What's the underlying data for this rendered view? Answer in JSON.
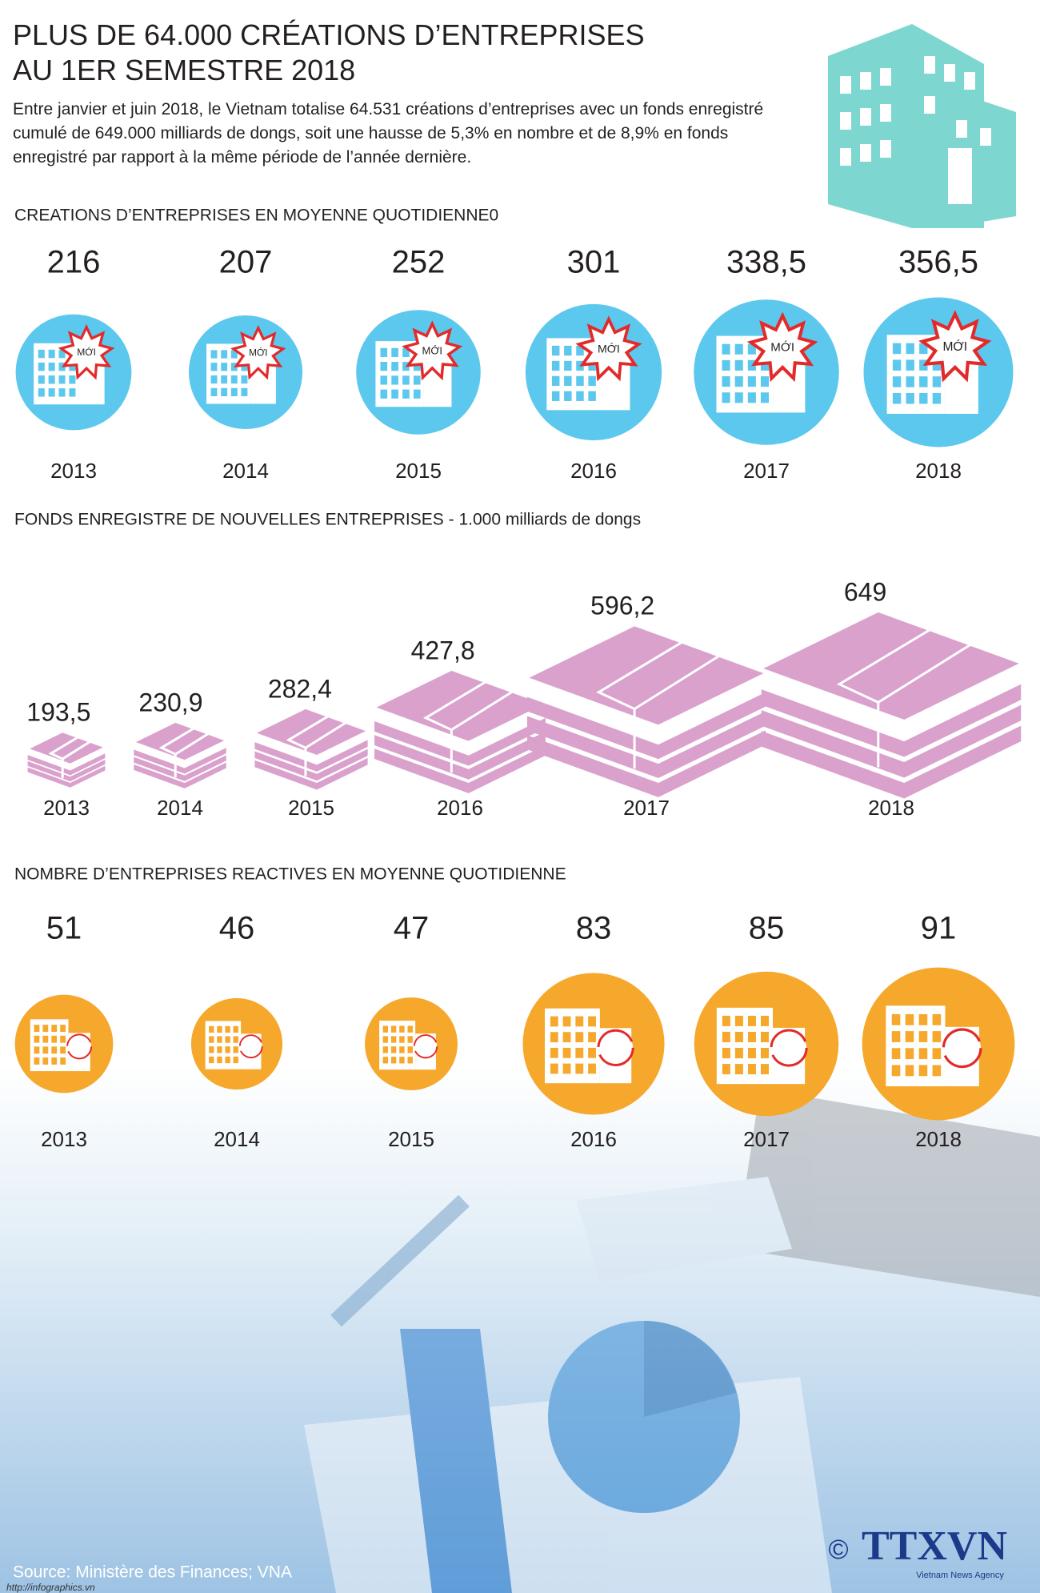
{
  "header": {
    "title": [
      "PLUS DE 64.000 CRÉATIONS D’ENTREPRISES",
      "AU 1ER SEMESTRE 2018"
    ],
    "intro": "Entre janvier et juin 2018, le Vietnam totalise 64.531 créations d’entreprises avec un fonds enregistré cumulé de 649.000 milliards de dongs, soit une hausse de 5,3% en nombre et de 8,9% en fonds enregistré par rapport à la même période de l’année dernière."
  },
  "chart_data": [
    {
      "type": "bubble",
      "title": "CREATIONS D’ENTREPRISES EN MOYENNE QUOTIDIENNE0",
      "badge": "MỚI",
      "color": "#5cc8ee",
      "categories": [
        "2013",
        "2014",
        "2015",
        "2016",
        "2017",
        "2018"
      ],
      "values": [
        216,
        207,
        252,
        301,
        338.5,
        356.5
      ],
      "value_labels": [
        "216",
        "207",
        "252",
        "301",
        "338,5",
        "356,5"
      ]
    },
    {
      "type": "pictogram",
      "title": "FONDS ENREGISTRE DE NOUVELLES ENTREPRISES - 1.000 milliards de dongs",
      "color": "#d9a1cc",
      "categories": [
        "2013",
        "2014",
        "2015",
        "2016",
        "2017",
        "2018"
      ],
      "values": [
        193.5,
        230.9,
        282.4,
        427.8,
        596.2,
        649
      ],
      "value_labels": [
        "193,5",
        "230,9",
        "282,4",
        "427,8",
        "596,2",
        "649"
      ]
    },
    {
      "type": "bubble",
      "title": "NOMBRE D’ENTREPRISES REACTIVES EN MOYENNE QUOTIDIENNE",
      "color": "#f6a82c",
      "categories": [
        "2013",
        "2014",
        "2015",
        "2016",
        "2017",
        "2018"
      ],
      "values": [
        51,
        46,
        47,
        83,
        85,
        91
      ]
    }
  ],
  "footer": {
    "source": "Source: Ministère des Finances; VNA",
    "url": "http://infographics.vn",
    "copyright": "©",
    "logo": "TTXVN",
    "logo_sub": "Vietnam News Agency"
  }
}
